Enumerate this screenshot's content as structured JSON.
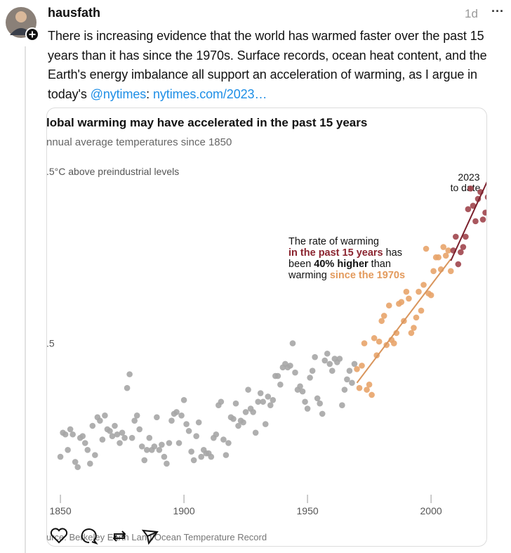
{
  "post": {
    "author": "hausfath",
    "time": "1d",
    "menu": "···",
    "text": "There is increasing evidence that the world has warmed faster over the past 15 years than it has since the 1970s. Surface records, ocean heat content, and the Earth's energy imbalance all support an acceleration of warming, as I argue in today's ",
    "mention": "@nytimes",
    "separator": ": ",
    "link": "nytimes.com/2023…"
  },
  "chart_data": {
    "type": "scatter",
    "title": "lobal warming may have accelerated in the past 15 years",
    "subtitle": "nnual average temperatures since 1850",
    "source": "urce: Berkeley Earth Land/Ocean Temperature Record",
    "xlim": [
      1844.3,
      2022.7
    ],
    "ylim": [
      -0.36,
      1.52
    ],
    "xticks": [
      1850,
      1900,
      1950,
      2000
    ],
    "yticks": [
      {
        "value": 0.5,
        "label": ".5"
      },
      {
        "value": 1.5,
        "label": ".5°C above preindustrial levels"
      }
    ],
    "series": [
      {
        "color": "#a6a6a6",
        "x": [
          1850,
          1851,
          1852,
          1853,
          1854,
          1855,
          1856,
          1857,
          1858,
          1859,
          1860,
          1861,
          1862,
          1863,
          1864,
          1865,
          1866,
          1867,
          1868,
          1869,
          1870,
          1871,
          1872,
          1873,
          1874,
          1875,
          1876,
          1877,
          1878,
          1879,
          1880,
          1881,
          1882,
          1883,
          1884,
          1885,
          1886,
          1887,
          1888,
          1889,
          1890,
          1891,
          1892,
          1893,
          1894,
          1895,
          1896,
          1897,
          1898,
          1899,
          1900,
          1901,
          1902,
          1903,
          1904,
          1905,
          1906,
          1907,
          1908,
          1909,
          1910,
          1911,
          1912,
          1913,
          1914,
          1915,
          1916,
          1917,
          1918,
          1919,
          1920,
          1921,
          1922,
          1923,
          1924,
          1925,
          1926,
          1927,
          1928,
          1929,
          1930,
          1931,
          1932,
          1933,
          1934,
          1935,
          1936,
          1937,
          1938,
          1939,
          1940,
          1941,
          1942,
          1943,
          1944,
          1945,
          1946,
          1947,
          1948,
          1949,
          1950,
          1951,
          1952,
          1953,
          1954,
          1955,
          1956,
          1957,
          1958,
          1959,
          1960,
          1961,
          1962,
          1963,
          1964,
          1965,
          1966,
          1967,
          1968,
          1969
        ],
        "values": [
          -0.16,
          -0.02,
          -0.03,
          -0.12,
          0.0,
          -0.03,
          -0.19,
          -0.22,
          -0.05,
          -0.04,
          -0.08,
          -0.12,
          -0.2,
          0.02,
          -0.15,
          0.07,
          0.05,
          -0.06,
          0.08,
          0.0,
          -0.01,
          -0.04,
          0.02,
          -0.03,
          -0.08,
          -0.02,
          -0.05,
          0.24,
          0.32,
          -0.05,
          0.05,
          0.08,
          0.0,
          -0.1,
          -0.18,
          -0.12,
          -0.05,
          -0.12,
          -0.1,
          0.07,
          -0.12,
          -0.09,
          -0.16,
          -0.2,
          -0.08,
          0.05,
          0.09,
          0.1,
          -0.08,
          0.08,
          0.17,
          0.03,
          -0.01,
          -0.13,
          -0.18,
          -0.04,
          0.04,
          -0.16,
          -0.12,
          -0.14,
          -0.14,
          -0.16,
          -0.05,
          -0.03,
          0.14,
          0.16,
          -0.06,
          -0.15,
          -0.08,
          0.07,
          0.06,
          0.15,
          0.02,
          0.05,
          0.04,
          0.1,
          0.23,
          0.12,
          0.1,
          -0.02,
          0.16,
          0.21,
          0.16,
          0.03,
          0.19,
          0.14,
          0.17,
          0.31,
          0.31,
          0.26,
          0.36,
          0.38,
          0.36,
          0.37,
          0.5,
          0.33,
          0.23,
          0.25,
          0.22,
          0.16,
          0.12,
          0.3,
          0.34,
          0.42,
          0.18,
          0.15,
          0.09,
          0.4,
          0.44,
          0.38,
          0.34,
          0.41,
          0.39,
          0.41,
          0.14,
          0.23,
          0.29,
          0.34,
          0.27,
          0.38
        ]
      },
      {
        "color": "#e8a46a",
        "x": [
          1970,
          1971,
          1972,
          1973,
          1974,
          1975,
          1976,
          1977,
          1978,
          1979,
          1980,
          1981,
          1982,
          1983,
          1984,
          1985,
          1986,
          1987,
          1988,
          1989,
          1990,
          1991,
          1992,
          1993,
          1994,
          1995,
          1996,
          1997,
          1998,
          1999,
          2000,
          2001,
          2002,
          2003,
          2004,
          2005,
          2006,
          2007,
          2008
        ],
        "values": [
          0.35,
          0.24,
          0.37,
          0.5,
          0.23,
          0.26,
          0.2,
          0.53,
          0.43,
          0.51,
          0.63,
          0.66,
          0.49,
          0.72,
          0.52,
          0.5,
          0.56,
          0.73,
          0.74,
          0.63,
          0.8,
          0.76,
          0.56,
          0.59,
          0.65,
          0.8,
          0.69,
          0.84,
          1.05,
          0.79,
          0.78,
          0.92,
          1.0,
          1.0,
          0.93,
          1.06,
          1.01,
          1.04,
          0.92
        ]
      },
      {
        "color": "#a0454c",
        "x": [
          2009,
          2010,
          2011,
          2012,
          2013,
          2014,
          2015,
          2016,
          2017,
          2018,
          2019,
          2020,
          2021,
          2022,
          2023
        ],
        "values": [
          1.04,
          1.12,
          0.96,
          1.03,
          1.06,
          1.12,
          1.28,
          1.4,
          1.3,
          1.21,
          1.34,
          1.38,
          1.22,
          1.26,
          1.35
        ]
      }
    ],
    "trend_lines": [
      {
        "color": "#d9955c",
        "x": [
          1970,
          2008
        ],
        "values": [
          0.27,
          0.99
        ]
      },
      {
        "color": "#7a1f2b",
        "x": [
          2008,
          2023
        ],
        "values": [
          0.98,
          1.45
        ]
      }
    ],
    "annotation": {
      "line1": "The rate of warming",
      "line2a": "in the past 15 years",
      "line2b": " has",
      "line3a": "been ",
      "line3b": "40% higher",
      "line3c": " than",
      "line4a": "warming ",
      "line4b": "since the 1970s"
    },
    "last_label": [
      "2023",
      "to date"
    ]
  }
}
